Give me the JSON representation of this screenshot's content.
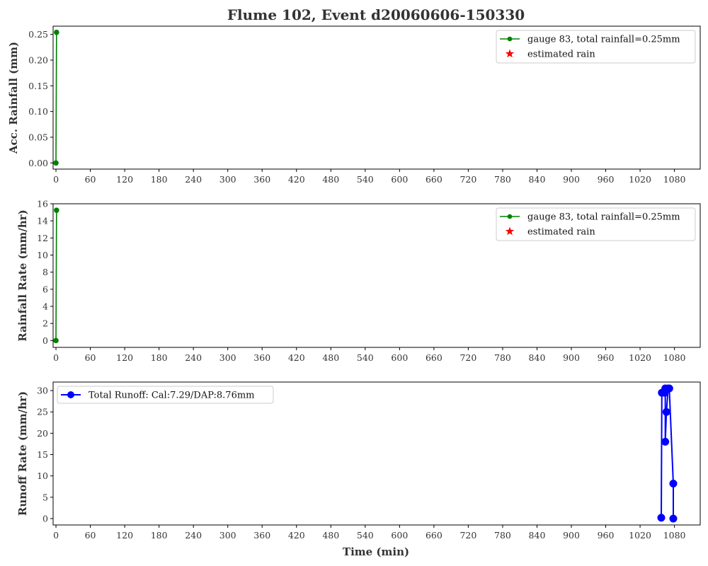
{
  "figure": {
    "title": "Flume 102, Event d20060606-150330"
  },
  "colors": {
    "gauge": "#008000",
    "estimated": "#ff0000",
    "runoff": "#0000ff",
    "axis": "#000000",
    "text": "#333333"
  },
  "chart_data": [
    {
      "id": "acc",
      "type": "line",
      "ylabel": "Acc. Rainfall (mm)",
      "xlabel": "",
      "xlim": [
        -5,
        1125
      ],
      "ylim": [
        -0.012,
        0.266
      ],
      "xticks": [
        0,
        60,
        120,
        180,
        240,
        300,
        360,
        420,
        480,
        540,
        600,
        660,
        720,
        780,
        840,
        900,
        960,
        1020,
        1080
      ],
      "yticks": [
        "0.00",
        "0.05",
        "0.10",
        "0.15",
        "0.20",
        "0.25"
      ],
      "grid": false,
      "legend_position": "top-right",
      "series": [
        {
          "name": "gauge 83, total rainfall=0.25mm",
          "marker": "circle",
          "color": "#008000",
          "x": [
            0,
            1
          ],
          "y": [
            0.0,
            0.254
          ]
        },
        {
          "name": "estimated rain",
          "marker": "star",
          "color": "#ff0000",
          "x": [],
          "y": []
        }
      ]
    },
    {
      "id": "rate",
      "type": "line",
      "ylabel": "Rainfall Rate (mm/hr)",
      "xlabel": "",
      "xlim": [
        -5,
        1125
      ],
      "ylim": [
        -0.8,
        16.0
      ],
      "xticks": [
        0,
        60,
        120,
        180,
        240,
        300,
        360,
        420,
        480,
        540,
        600,
        660,
        720,
        780,
        840,
        900,
        960,
        1020,
        1080
      ],
      "yticks": [
        "0",
        "2",
        "4",
        "6",
        "8",
        "10",
        "12",
        "14",
        "16"
      ],
      "grid": false,
      "legend_position": "top-right",
      "series": [
        {
          "name": "gauge 83, total rainfall=0.25mm",
          "marker": "circle",
          "color": "#008000",
          "x": [
            0,
            1
          ],
          "y": [
            0.0,
            15.24
          ]
        },
        {
          "name": "estimated rain",
          "marker": "star",
          "color": "#ff0000",
          "x": [],
          "y": []
        }
      ]
    },
    {
      "id": "runoff",
      "type": "line",
      "ylabel": "Runoff Rate (mm/hr)",
      "xlabel": "Time (min)",
      "xlim": [
        -5,
        1125
      ],
      "ylim": [
        -1.5,
        32.0
      ],
      "xticks": [
        0,
        60,
        120,
        180,
        240,
        300,
        360,
        420,
        480,
        540,
        600,
        660,
        720,
        780,
        840,
        900,
        960,
        1020,
        1080
      ],
      "yticks": [
        "0",
        "5",
        "10",
        "15",
        "20",
        "25",
        "30"
      ],
      "grid": false,
      "legend_position": "top-left",
      "series": [
        {
          "name": "Total Runoff: Cal:7.29/DAP:8.76mm",
          "marker": "circle",
          "color": "#0000ff",
          "x": [
            1057,
            1058,
            1063,
            1064,
            1064,
            1066,
            1069,
            1071,
            1078,
            1078
          ],
          "y": [
            0.2,
            29.5,
            29.5,
            30.5,
            18.0,
            25.0,
            30.5,
            30.5,
            8.2,
            0.0
          ]
        }
      ]
    }
  ]
}
